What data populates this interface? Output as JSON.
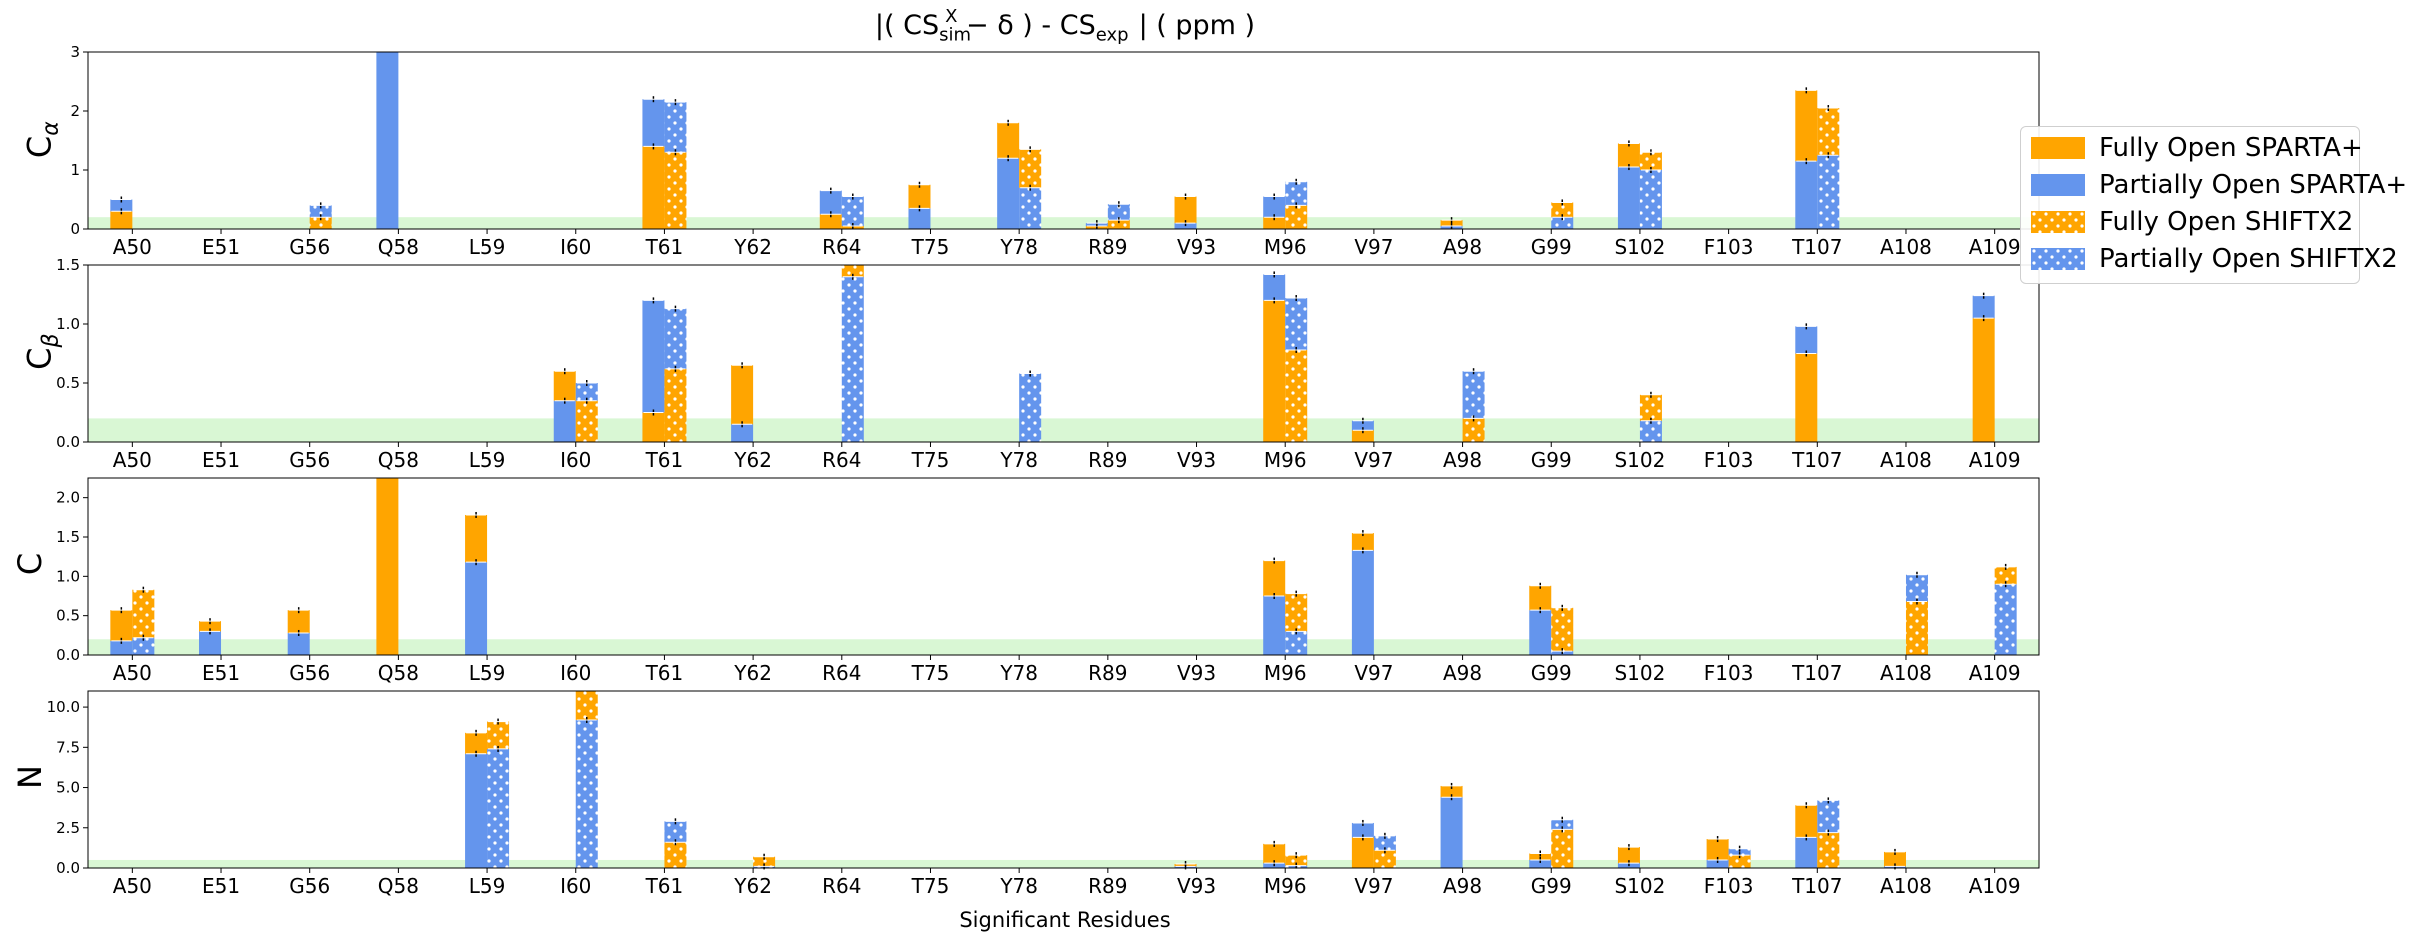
{
  "figure": {
    "title_pre": "|( CS",
    "title_sub": "sim",
    "title_sup": "X",
    "title_mid": " − δ ) - CS",
    "title_sub2": "exp",
    "title_post": "|  ( ppm )",
    "xlabel": "Significant Residues"
  },
  "legend": {
    "items": [
      {
        "label": "Fully Open SPARTA+",
        "color": "#FFA500",
        "pattern": "solid"
      },
      {
        "label": "Partially Open SPARTA+",
        "color": "#6495ED",
        "pattern": "solid"
      },
      {
        "label": "Fully Open SHIFTX2",
        "color": "#FFA500",
        "pattern": "dots"
      },
      {
        "label": "Partially Open SHIFTX2",
        "color": "#6495ED",
        "pattern": "dots"
      }
    ]
  },
  "colors": {
    "fully_open": "#FFA500",
    "partially_open": "#6495ED",
    "threshold_band": "#d9f7d4"
  },
  "chart_data": [
    {
      "type": "bar",
      "ylabel_main": "C",
      "ylabel_sub": "α",
      "ylim": [
        0,
        3
      ],
      "yticks": [
        "0",
        "1",
        "2",
        "3"
      ],
      "ytick_values": [
        0,
        1,
        2,
        3
      ],
      "threshold": 0.2,
      "categories": [
        "A50",
        "E51",
        "G56",
        "Q58",
        "L59",
        "I60",
        "T61",
        "Y62",
        "R64",
        "T75",
        "Y78",
        "R89",
        "V93",
        "M96",
        "V97",
        "A98",
        "G99",
        "S102",
        "F103",
        "T107",
        "A108",
        "A109"
      ],
      "sparta": [
        [
          0.3,
          0.5
        ],
        null,
        null,
        [
          0,
          3.0
        ],
        null,
        null,
        [
          1.4,
          2.2
        ],
        null,
        [
          0.25,
          0.65
        ],
        [
          0.75,
          0.35
        ],
        [
          1.8,
          1.2
        ],
        [
          0.05,
          0.1
        ],
        [
          0.55,
          0.1
        ],
        [
          0.2,
          0.55
        ],
        null,
        [
          0.15,
          0.05
        ],
        null,
        [
          1.45,
          1.05
        ],
        null,
        [
          2.35,
          1.15
        ],
        null,
        null
      ],
      "shiftx": [
        null,
        null,
        [
          0.2,
          0.4
        ],
        null,
        null,
        null,
        [
          1.3,
          2.15
        ],
        null,
        [
          0.05,
          0.55
        ],
        null,
        [
          1.35,
          0.7
        ],
        [
          0.15,
          0.42
        ],
        null,
        [
          0.4,
          0.8
        ],
        null,
        null,
        [
          0.45,
          0.2
        ],
        [
          1.3,
          1.0
        ],
        null,
        [
          2.05,
          1.25
        ],
        null,
        null
      ]
    },
    {
      "type": "bar",
      "ylabel_main": "C",
      "ylabel_sub": "β",
      "ylim": [
        0,
        1.5
      ],
      "yticks": [
        "0.0",
        "0.5",
        "1.0",
        "1.5"
      ],
      "ytick_values": [
        0,
        0.5,
        1.0,
        1.5
      ],
      "threshold": 0.2,
      "categories": [
        "A50",
        "E51",
        "G56",
        "Q58",
        "L59",
        "I60",
        "T61",
        "Y62",
        "R64",
        "T75",
        "Y78",
        "R89",
        "V93",
        "M96",
        "V97",
        "A98",
        "G99",
        "S102",
        "F103",
        "T107",
        "A108",
        "A109"
      ],
      "sparta": [
        null,
        null,
        null,
        null,
        null,
        [
          0.6,
          0.35
        ],
        [
          0.25,
          1.2
        ],
        [
          0.65,
          0.15
        ],
        null,
        null,
        null,
        null,
        null,
        [
          1.2,
          1.42
        ],
        [
          0.1,
          0.18
        ],
        null,
        null,
        null,
        null,
        [
          0.75,
          0.98
        ],
        null,
        [
          1.05,
          1.24
        ]
      ],
      "shiftx": [
        null,
        null,
        null,
        null,
        null,
        [
          0.35,
          0.5
        ],
        [
          0.62,
          1.13
        ],
        null,
        [
          1.5,
          1.4
        ],
        null,
        [
          0.0,
          0.58
        ],
        null,
        null,
        [
          0.78,
          1.22
        ],
        null,
        [
          0.2,
          0.6
        ],
        null,
        [
          0.4,
          0.18
        ],
        null,
        null,
        null,
        null
      ]
    },
    {
      "type": "bar",
      "ylabel_main": "C",
      "ylabel_sub": "",
      "ylim": [
        0,
        2.25
      ],
      "yticks": [
        "0.0",
        "0.5",
        "1.0",
        "1.5",
        "2.0"
      ],
      "ytick_values": [
        0,
        0.5,
        1.0,
        1.5,
        2.0
      ],
      "threshold": 0.2,
      "categories": [
        "A50",
        "E51",
        "G56",
        "Q58",
        "L59",
        "I60",
        "T61",
        "Y62",
        "R64",
        "T75",
        "Y78",
        "R89",
        "V93",
        "M96",
        "V97",
        "A98",
        "G99",
        "S102",
        "F103",
        "T107",
        "A108",
        "A109"
      ],
      "sparta": [
        [
          0.57,
          0.18
        ],
        [
          0.43,
          0.3
        ],
        [
          0.57,
          0.28
        ],
        [
          2.25,
          0
        ],
        [
          1.78,
          1.18
        ],
        null,
        null,
        null,
        null,
        null,
        null,
        null,
        null,
        [
          1.2,
          0.75
        ],
        [
          1.55,
          1.33
        ],
        null,
        [
          0.88,
          0.57
        ],
        null,
        null,
        null,
        null,
        null
      ],
      "shiftx": [
        [
          0.83,
          0.22
        ],
        null,
        null,
        null,
        null,
        null,
        null,
        null,
        null,
        null,
        null,
        null,
        null,
        [
          0.78,
          0.3
        ],
        null,
        null,
        [
          0.6,
          0.05
        ],
        null,
        null,
        null,
        [
          0.68,
          1.02
        ],
        [
          1.12,
          0.9
        ]
      ]
    },
    {
      "type": "bar",
      "ylabel_main": "N",
      "ylabel_sub": "",
      "ylim": [
        0,
        11
      ],
      "yticks": [
        "0.0",
        "2.5",
        "5.0",
        "7.5",
        "10.0"
      ],
      "ytick_values": [
        0,
        2.5,
        5.0,
        7.5,
        10.0
      ],
      "threshold": 0.5,
      "categories": [
        "A50",
        "E51",
        "G56",
        "Q58",
        "L59",
        "I60",
        "T61",
        "Y62",
        "R64",
        "T75",
        "Y78",
        "R89",
        "V93",
        "M96",
        "V97",
        "A98",
        "G99",
        "S102",
        "F103",
        "T107",
        "A108",
        "A109"
      ],
      "sparta": [
        null,
        null,
        null,
        null,
        [
          8.4,
          7.1
        ],
        null,
        null,
        null,
        null,
        null,
        null,
        null,
        [
          0.25,
          0.1
        ],
        [
          1.5,
          0.3
        ],
        [
          1.9,
          2.8
        ],
        [
          5.1,
          4.4
        ],
        [
          0.9,
          0.5
        ],
        [
          1.3,
          0.3
        ],
        [
          1.8,
          0.5
        ],
        [
          3.9,
          1.9
        ],
        [
          1.0,
          0.1
        ],
        null
      ],
      "shiftx": [
        null,
        null,
        null,
        null,
        [
          9.1,
          7.4
        ],
        [
          11.0,
          9.2
        ],
        [
          1.6,
          2.9
        ],
        [
          0.7,
          0.1
        ],
        null,
        null,
        null,
        null,
        null,
        [
          0.8,
          0.15
        ],
        [
          1.1,
          2.0
        ],
        null,
        [
          2.4,
          3.0
        ],
        null,
        [
          0.8,
          1.2
        ],
        [
          2.2,
          4.2
        ],
        null,
        null
      ]
    }
  ]
}
